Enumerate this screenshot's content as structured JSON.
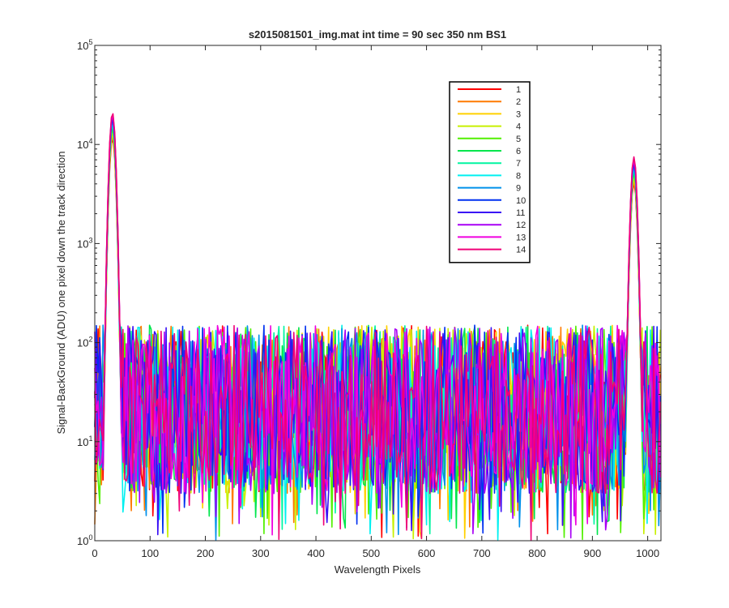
{
  "chart_data": {
    "type": "line",
    "title": "s2015081501_img.mat int time = 90 sec  350 nm BS1",
    "xlabel": "Wavelength Pixels",
    "ylabel": "Signal-BackGround (ADU) one pixel down the track direction",
    "xlim": [
      0,
      1024
    ],
    "ylim": [
      1,
      100000
    ],
    "yscale": "log",
    "grid": false,
    "legend_position": "top-right",
    "x_ticks": [
      "0",
      "100",
      "200",
      "300",
      "400",
      "500",
      "600",
      "700",
      "800",
      "900",
      "1000"
    ],
    "y_ticks": [
      {
        "base": "10",
        "exp": "0"
      },
      {
        "base": "10",
        "exp": "1"
      },
      {
        "base": "10",
        "exp": "2"
      },
      {
        "base": "10",
        "exp": "3"
      },
      {
        "base": "10",
        "exp": "4"
      },
      {
        "base": "10",
        "exp": "5"
      }
    ],
    "noise_range_adu": [
      1,
      150
    ],
    "peaks": [
      {
        "x": 32,
        "y": 21000
      },
      {
        "x": 975,
        "y": 7500
      }
    ],
    "series": [
      {
        "name": "1",
        "color": "#ff0000"
      },
      {
        "name": "2",
        "color": "#ff7a00"
      },
      {
        "name": "3",
        "color": "#ffd000"
      },
      {
        "name": "4",
        "color": "#c8f000"
      },
      {
        "name": "5",
        "color": "#52f000"
      },
      {
        "name": "6",
        "color": "#00e64c"
      },
      {
        "name": "7",
        "color": "#00f5a0"
      },
      {
        "name": "8",
        "color": "#00f0f0"
      },
      {
        "name": "9",
        "color": "#0090ea"
      },
      {
        "name": "10",
        "color": "#0030f0"
      },
      {
        "name": "11",
        "color": "#3a10f5"
      },
      {
        "name": "12",
        "color": "#a800f5"
      },
      {
        "name": "13",
        "color": "#f000e0"
      },
      {
        "name": "14",
        "color": "#f00078"
      }
    ]
  }
}
